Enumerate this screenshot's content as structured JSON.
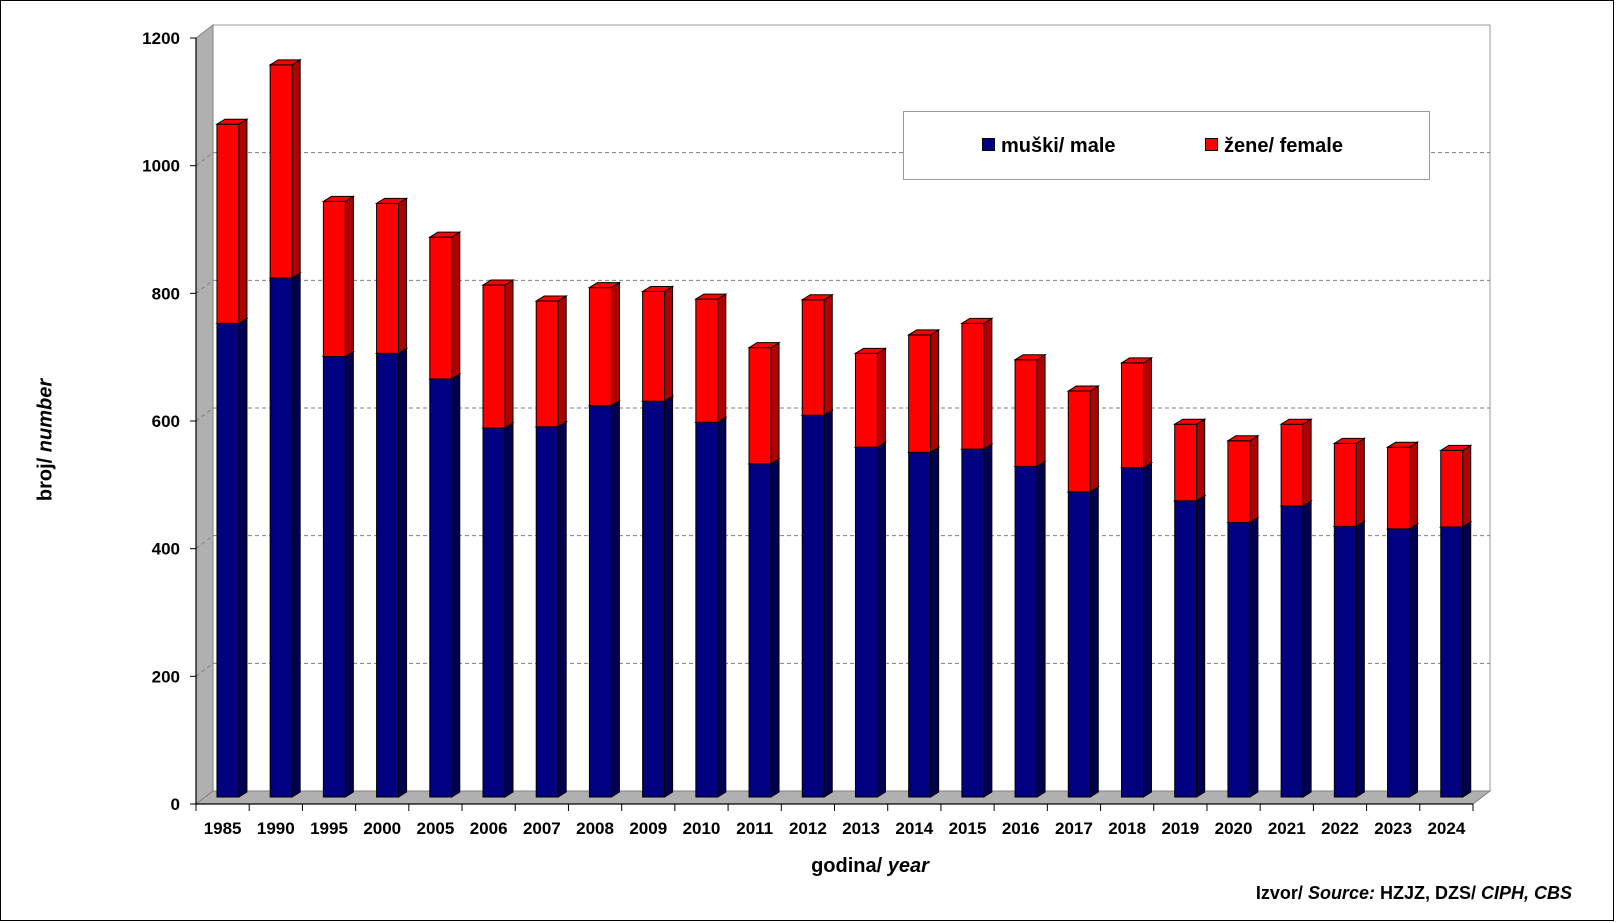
{
  "chart_data": {
    "type": "bar",
    "stacked": true,
    "categories": [
      "1985",
      "1990",
      "1995",
      "2000",
      "2005",
      "2006",
      "2007",
      "2008",
      "2009",
      "2010",
      "2011",
      "2012",
      "2013",
      "2014",
      "2015",
      "2016",
      "2017",
      "2018",
      "2019",
      "2020",
      "2021",
      "2022",
      "2023",
      "2024"
    ],
    "series": [
      {
        "name": "muški/ male",
        "color": "#000080",
        "values": [
          742,
          813,
          690,
          695,
          655,
          578,
          580,
          613,
          620,
          587,
          522,
          598,
          548,
          540,
          545,
          518,
          478,
          516,
          464,
          430,
          456,
          424,
          420,
          423
        ]
      },
      {
        "name": "žene/ female",
        "color": "#ff0000",
        "values": [
          312,
          334,
          243,
          235,
          222,
          224,
          197,
          185,
          172,
          193,
          182,
          181,
          147,
          184,
          197,
          167,
          158,
          164,
          120,
          128,
          128,
          130,
          128,
          120
        ]
      }
    ],
    "ylim": [
      0,
      1200
    ],
    "yticks": [
      0,
      200,
      400,
      600,
      800,
      1000,
      1200
    ],
    "grid": true,
    "legend_position": "top-right"
  },
  "ylabel": {
    "normal": "broj/ ",
    "italic": "number"
  },
  "xlabel": {
    "normal": "godina/ ",
    "italic": "year"
  },
  "source": {
    "part1": "Izvor/ ",
    "part2": "Source:",
    "part3": " HZJZ, DZS/ ",
    "part4": "CIPH, CBS"
  }
}
